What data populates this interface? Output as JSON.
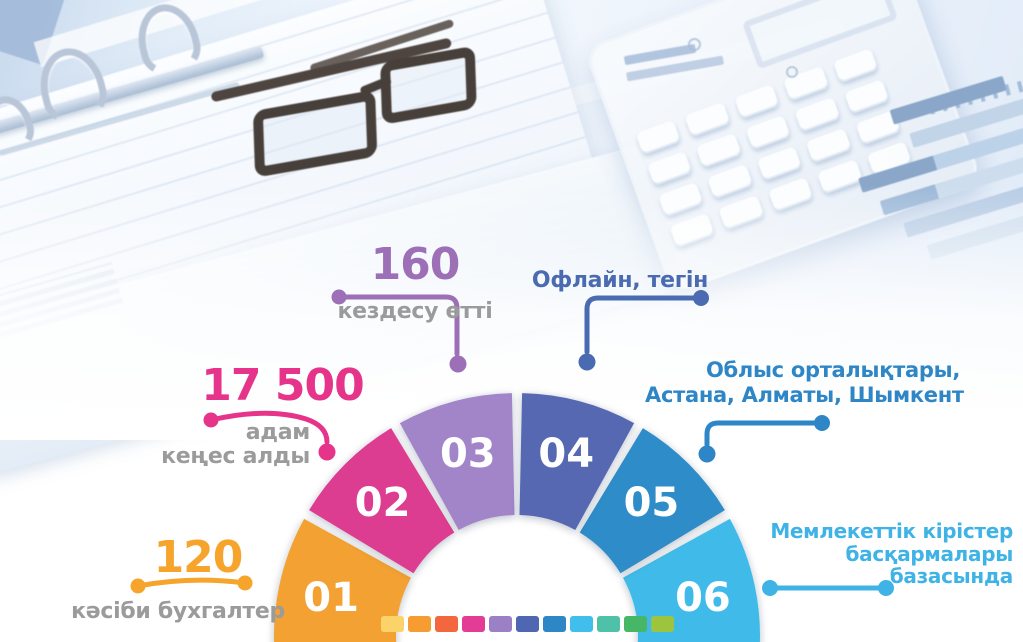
{
  "infographic": {
    "stats": [
      {
        "id": "meetings",
        "value": "160",
        "label": "кездесу өтті",
        "color": "#9C6FB7"
      },
      {
        "id": "consulted",
        "value": "17 500",
        "label": "адам кеңес алды",
        "label_lines": [
          "адам",
          "кеңес алды"
        ],
        "color": "#E5348A"
      },
      {
        "id": "accountants",
        "value": "120",
        "label": "кәсіби бухгалтер",
        "color": "#F6A42C"
      }
    ],
    "callouts": [
      {
        "id": "offline",
        "text": "Офлайн, тегін",
        "color": "#4A6BB1"
      },
      {
        "id": "regions",
        "lines": [
          "Облыс орталықтары,",
          "Астана, Алматы, Шымкент"
        ],
        "color": "#2E86C6"
      },
      {
        "id": "base",
        "lines": [
          "Мемлекеттік кірістер",
          "басқармалары",
          "базасында"
        ],
        "color": "#3FB3E6"
      }
    ],
    "gauge": {
      "type": "semicircle-steps",
      "segments": [
        {
          "label": "01",
          "color": "#F2A133"
        },
        {
          "label": "02",
          "color": "#DD3D90"
        },
        {
          "label": "03",
          "color": "#A284C9"
        },
        {
          "label": "04",
          "color": "#5568B1"
        },
        {
          "label": "05",
          "color": "#2F8CC9"
        },
        {
          "label": "06",
          "color": "#41BBE9"
        }
      ],
      "number_text_color": "#FFFFFF"
    },
    "legend_colors": [
      "#FCD36A",
      "#F79C31",
      "#F2673E",
      "#E23C96",
      "#9C80C5",
      "#4F66B3",
      "#2F86C5",
      "#41BEEC",
      "#4FC1A9",
      "#45B766",
      "#9EC43F"
    ]
  }
}
